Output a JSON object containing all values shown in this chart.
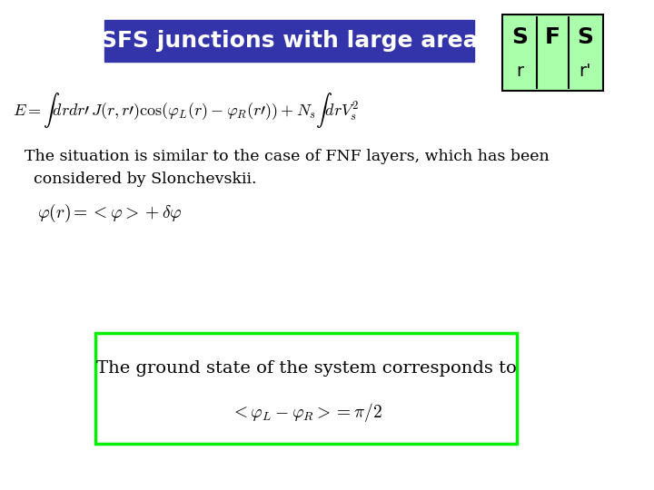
{
  "background_color": "#ffffff",
  "title_text": "SFS junctions with large area",
  "title_bg_color": "#3333aa",
  "title_text_color": "#ffffff",
  "title_fontsize": 18,
  "sfs_box_color": "#aaffaa",
  "sfs_box_border": "#000000",
  "green_box_border": "#00ee00",
  "green_box_bg": "#ffffff",
  "eq1_latex": "$E = \\int drdr'\\, J(r,r') \\cos(\\varphi_L(r) - \\varphi_R(r')) + N_s \\int dr V_s^2$",
  "text1": "The situation is similar to the case of FNF layers, which has been",
  "text2": "considered by Slonchevskii.",
  "eq2_latex": "$\\varphi(r) = <\\varphi> + \\delta\\varphi$",
  "box_text": "The ground state of the system corresponds to",
  "eq3_latex": "$<\\varphi_L - \\varphi_R>= \\pi/2$",
  "fontsize_main": 14,
  "fontsize_eq": 15
}
